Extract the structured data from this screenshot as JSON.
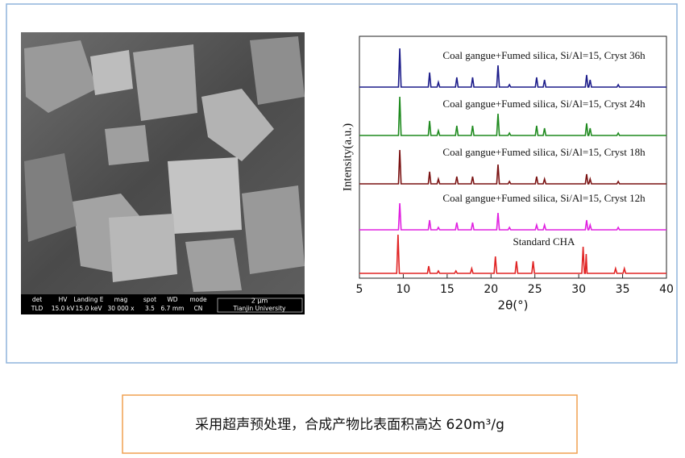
{
  "sem": {
    "info": [
      {
        "header": "det",
        "value": "TLD"
      },
      {
        "header": "HV",
        "value": "15.0 kV"
      },
      {
        "header": "Landing E",
        "value": "15.0 keV"
      },
      {
        "header": "mag",
        "value": "30 000 x"
      },
      {
        "header": "spot",
        "value": "3.5"
      },
      {
        "header": "WD",
        "value": "6.7 mm"
      },
      {
        "header": "mode",
        "value": "CN"
      }
    ],
    "scale_bar": "2 μm",
    "institution": "Tianjin University"
  },
  "chart_data": {
    "type": "line",
    "xlabel": "2θ(°)",
    "ylabel": "Intensity(a.u.)",
    "xlim": [
      5,
      40
    ],
    "xticks": [
      5,
      10,
      15,
      20,
      25,
      30,
      35,
      40
    ],
    "ylim": [
      0,
      100
    ],
    "series": [
      {
        "name": "Coal gangue+Fumed silica, Si/Al=15, Cryst 36h",
        "color": "#1c1c8a",
        "x": [
          5,
          9.45,
          9.6,
          9.75,
          12.85,
          13.0,
          13.15,
          13.85,
          14.0,
          14.15,
          15.95,
          16.1,
          16.25,
          17.75,
          17.9,
          18.05,
          20.65,
          20.8,
          20.95,
          21.95,
          22.1,
          22.25,
          25.05,
          25.2,
          25.35,
          25.95,
          26.1,
          26.25,
          30.75,
          30.9,
          31.05,
          31.15,
          31.3,
          31.45,
          34.35,
          34.5,
          34.65,
          40
        ],
        "values": [
          79,
          79,
          95,
          79,
          79,
          85,
          79,
          79,
          81,
          79,
          79,
          83,
          79,
          79,
          83,
          79,
          79,
          88,
          79,
          79,
          80,
          79,
          79,
          83,
          79,
          79,
          82,
          79,
          79,
          84,
          79,
          79,
          82,
          79,
          79,
          80,
          79,
          79
        ]
      },
      {
        "name": "Coal gangue+Fumed silica, Si/Al=15, Cryst 24h",
        "color": "#1e8a1e",
        "x": [
          5,
          9.45,
          9.6,
          9.75,
          12.85,
          13.0,
          13.15,
          13.85,
          14.0,
          14.15,
          15.95,
          16.1,
          16.25,
          17.75,
          17.9,
          18.05,
          20.65,
          20.8,
          20.95,
          21.95,
          22.1,
          22.25,
          25.05,
          25.2,
          25.35,
          25.95,
          26.1,
          26.25,
          30.75,
          30.9,
          31.05,
          31.15,
          31.3,
          31.45,
          34.35,
          34.5,
          34.65,
          40
        ],
        "values": [
          59,
          59,
          75,
          59,
          59,
          65,
          59,
          59,
          61,
          59,
          59,
          63,
          59,
          59,
          63,
          59,
          59,
          68,
          59,
          59,
          60,
          59,
          59,
          63,
          59,
          59,
          62,
          59,
          59,
          64,
          59,
          59,
          62,
          59,
          59,
          60,
          59,
          59
        ]
      },
      {
        "name": "Coal gangue+Fumed silica, Si/Al=15, Cryst 18h",
        "color": "#7a1212",
        "x": [
          5,
          9.45,
          9.6,
          9.75,
          12.85,
          13.0,
          13.15,
          13.85,
          14.0,
          14.15,
          15.95,
          16.1,
          16.25,
          17.75,
          17.9,
          18.05,
          20.65,
          20.8,
          20.95,
          21.95,
          22.1,
          22.25,
          25.05,
          25.2,
          25.35,
          25.95,
          26.1,
          26.25,
          30.75,
          30.9,
          31.05,
          31.15,
          31.3,
          31.45,
          34.35,
          34.5,
          34.65,
          40
        ],
        "values": [
          39,
          39,
          53,
          39,
          39,
          44,
          39,
          39,
          41,
          39,
          39,
          42,
          39,
          39,
          42,
          39,
          39,
          47,
          39,
          39,
          40,
          39,
          39,
          42,
          39,
          39,
          41,
          39,
          39,
          43,
          39,
          39,
          41,
          39,
          39,
          40,
          39,
          39
        ]
      },
      {
        "name": "Coal gangue+Fumed silica, Si/Al=15, Cryst 12h",
        "color": "#e020e0",
        "x": [
          5,
          9.45,
          9.6,
          9.75,
          12.85,
          13.0,
          13.15,
          13.85,
          14.0,
          14.15,
          15.95,
          16.1,
          16.25,
          17.75,
          17.9,
          18.05,
          20.65,
          20.8,
          20.95,
          21.95,
          22.1,
          22.25,
          25.05,
          25.2,
          25.35,
          25.95,
          26.1,
          26.25,
          30.75,
          30.9,
          31.05,
          31.15,
          31.3,
          31.45,
          34.35,
          34.5,
          34.65,
          40
        ],
        "values": [
          20,
          20,
          31,
          20,
          20,
          24,
          20,
          20,
          21,
          20,
          20,
          23,
          20,
          20,
          23,
          20,
          20,
          27,
          20,
          20,
          21,
          20,
          20,
          22,
          20,
          20,
          22,
          20,
          20,
          24,
          20,
          20,
          22,
          20,
          20,
          21,
          20,
          20
        ]
      },
      {
        "name": "Standard CHA",
        "color": "#e02424",
        "x": [
          5,
          9.25,
          9.4,
          9.55,
          12.75,
          12.9,
          13.05,
          13.85,
          14.0,
          14.15,
          15.85,
          16.0,
          16.15,
          17.65,
          17.8,
          17.95,
          20.35,
          20.5,
          20.65,
          22.75,
          22.9,
          23.05,
          24.65,
          24.8,
          24.95,
          30.35,
          30.5,
          30.65,
          30.75,
          30.85,
          30.95,
          34.05,
          34.2,
          34.35,
          35.05,
          35.2,
          35.35,
          40
        ],
        "values": [
          2,
          2,
          18,
          2,
          2,
          5,
          2,
          2,
          3,
          2,
          2,
          3,
          2,
          2,
          4,
          2,
          2,
          9,
          2,
          2,
          7,
          2,
          2,
          7,
          2,
          2,
          13,
          2,
          2,
          10,
          2,
          2,
          4,
          2,
          2,
          4,
          2,
          2
        ]
      }
    ]
  },
  "caption": "采用超声预处理，合成产物比表面积高达 620m³/g"
}
